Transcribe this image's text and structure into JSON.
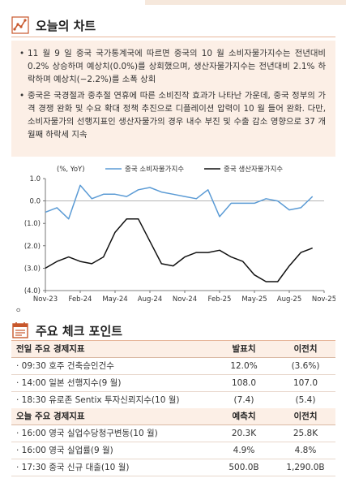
{
  "section1": {
    "title": "오늘의 차트",
    "icon": "chart-trend-icon"
  },
  "bullets": [
    "11 월 9 일 중국 국가통계국에 따르면 중국의 10 월 소비자물가지수는 전년대비 0.2% 상승하며 예상치(0.0%)를 상회했으며, 생산자물가지수는 전년대비 2.1% 하락하며 예상치(−2.2%)를 소폭 상회",
    "중국은 국경절과 중추절 연휴에 따른 소비진작 효과가 나타난 가운데, 중국 정부의 가격 경쟁 완화 및 수요 확대 정책 추진으로 디플레이션 압력이 10 월 들어 완화. 다만, 소비자물가의 선행지표인 생산자물가의 경우 내수 부진 및 수출 감소 영향으로 37 개월째 하락세 지속"
  ],
  "chart_data": {
    "type": "line",
    "unit_label": "(%, YoY)",
    "ylim": [
      -4.0,
      1.0
    ],
    "yticks": [
      "1.0",
      "0.0",
      "(1.0)",
      "(2.0)",
      "(3.0)",
      "(4.0)"
    ],
    "ytick_values": [
      1.0,
      0.0,
      -1.0,
      -2.0,
      -3.0,
      -4.0
    ],
    "x": [
      "Nov-23",
      "Dec-23",
      "Jan-24",
      "Feb-24",
      "Mar-24",
      "Apr-24",
      "May-24",
      "Jun-24",
      "Jul-24",
      "Aug-24",
      "Sep-24",
      "Oct-24",
      "Nov-24",
      "Dec-24",
      "Jan-25",
      "Feb-25",
      "Mar-25",
      "Apr-25",
      "May-25",
      "Jun-25",
      "Jul-25",
      "Aug-25",
      "Sep-25",
      "Oct-25"
    ],
    "xtick_labels": [
      "Nov-23",
      "Feb-24",
      "May-24",
      "Aug-24",
      "Nov-24",
      "Feb-25",
      "May-25",
      "Aug-25",
      "Nov-25"
    ],
    "xtick_indices": [
      0,
      3,
      6,
      9,
      12,
      15,
      18,
      21,
      24
    ],
    "x_count": 25,
    "series": [
      {
        "name": "중국 소비자물가지수",
        "color": "#5b9bd5",
        "style": "solid",
        "values": [
          -0.5,
          -0.3,
          -0.8,
          0.7,
          0.1,
          0.3,
          0.3,
          0.2,
          0.5,
          0.6,
          0.4,
          0.3,
          0.2,
          0.1,
          0.5,
          -0.7,
          -0.1,
          -0.1,
          -0.1,
          0.1,
          0.0,
          -0.4,
          -0.3,
          0.2
        ]
      },
      {
        "name": "중국 생산자물가지수",
        "color": "#111111",
        "style": "solid",
        "values": [
          -3.0,
          -2.7,
          -2.5,
          -2.7,
          -2.8,
          -2.5,
          -1.4,
          -0.8,
          -0.8,
          -1.8,
          -2.8,
          -2.9,
          -2.5,
          -2.3,
          -2.3,
          -2.2,
          -2.5,
          -2.7,
          -3.3,
          -3.6,
          -3.6,
          -2.9,
          -2.3,
          -2.1
        ]
      }
    ],
    "legend_position": "top"
  },
  "small_mark": "ㅇ",
  "section2": {
    "title": "주요 체크 포인트",
    "icon": "calendar-icon"
  },
  "table1": {
    "headers": [
      "전일 주요 경제지표",
      "발표치",
      "이전치"
    ],
    "rows": [
      [
        "· 09:30 호주 건축승인건수",
        "12.0%",
        "(3.6%)"
      ],
      [
        "· 14:00 일본 선행지수(9 월)",
        "108.0",
        "107.0"
      ],
      [
        "· 18:30 유로존 Sentix 투자신뢰지수(10 월)",
        "(7.4)",
        "(5.4)"
      ]
    ]
  },
  "table2": {
    "headers": [
      "오늘 주요 경제지표",
      "예측치",
      "이전치"
    ],
    "rows": [
      [
        "· 16:00 영국 실업수당청구변동(10 월)",
        "20.3K",
        "25.8K"
      ],
      [
        "· 16:00 영국 실업률(9 월)",
        "4.9%",
        "4.8%"
      ],
      [
        "· 17:30 중국 신규 대출(10 월)",
        "500.0B",
        "1,290.0B"
      ]
    ]
  }
}
